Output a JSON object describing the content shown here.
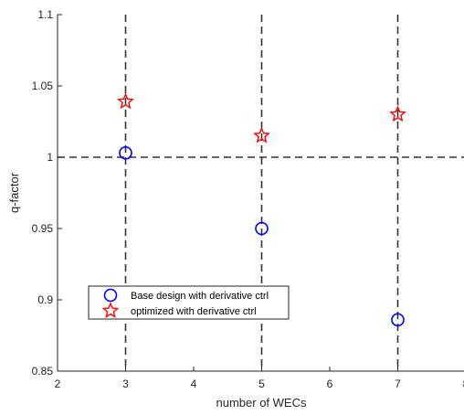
{
  "chart_data": {
    "type": "scatter",
    "xlabel": "number of WECs",
    "ylabel": "q-factor",
    "xlim": [
      2,
      8
    ],
    "ylim": [
      0.85,
      1.1
    ],
    "x_ticks": [
      2,
      3,
      4,
      5,
      6,
      7,
      8
    ],
    "x_tick_labels": [
      "2",
      "3",
      "4",
      "5",
      "6",
      "7",
      "8"
    ],
    "y_ticks": [
      0.85,
      0.9,
      0.95,
      1,
      1.05,
      1.1
    ],
    "y_tick_labels": [
      "0.85",
      "0.9",
      "0.95",
      "1",
      "1.05",
      "1.1"
    ],
    "grid": false,
    "legend_position": "lower-left",
    "reference_lines": {
      "horizontal": [
        1
      ],
      "vertical": [
        3,
        5,
        7
      ],
      "style": "dashed",
      "color": "#333333"
    },
    "series": [
      {
        "name": "Base design with derivative ctrl",
        "marker": "circle",
        "color": "#0000ff",
        "x": [
          3,
          5,
          7
        ],
        "y": [
          1.003,
          0.95,
          0.886
        ]
      },
      {
        "name": "optimized with derivative ctrl",
        "marker": "star",
        "color": "#ff0000",
        "x": [
          3,
          5,
          7
        ],
        "y": [
          1.039,
          1.015,
          1.03
        ]
      }
    ]
  }
}
